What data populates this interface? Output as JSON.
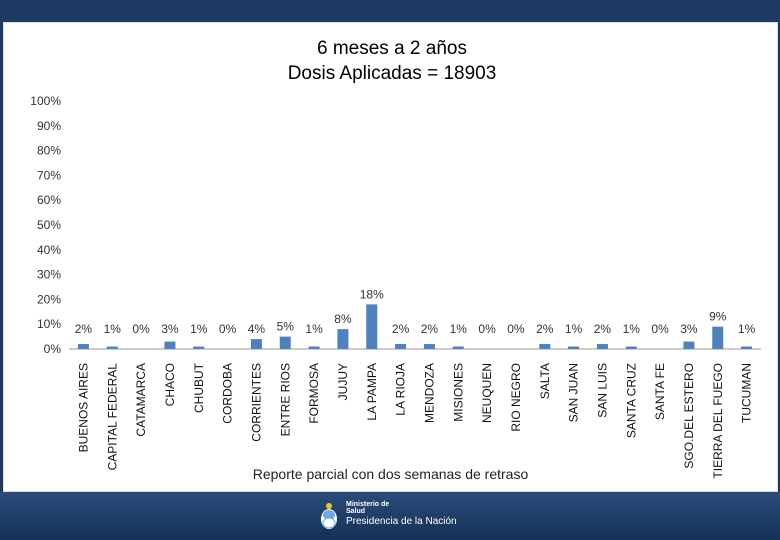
{
  "chart_data": {
    "type": "bar",
    "title": [
      "6 meses a 2 años",
      "Dosis Aplicadas = 18903"
    ],
    "categories": [
      "BUENOS AIRES",
      "CAPITAL FEDERAL",
      "CATAMARCA",
      "CHACO",
      "CHUBUT",
      "CORDOBA",
      "CORRIENTES",
      "ENTRE RIOS",
      "FORMOSA",
      "JUJUY",
      "LA PAMPA",
      "LA RIOJA",
      "MENDOZA",
      "MISIONES",
      "NEUQUEN",
      "RIO NEGRO",
      "SALTA",
      "SAN JUAN",
      "SAN LUIS",
      "SANTA CRUZ",
      "SANTA FE",
      "SGO.DEL ESTERO",
      "TIERRA DEL FUEGO",
      "TUCUMAN"
    ],
    "values": [
      2,
      1,
      0,
      3,
      1,
      0,
      4,
      5,
      1,
      8,
      18,
      2,
      2,
      1,
      0,
      0,
      2,
      1,
      2,
      1,
      0,
      3,
      9,
      1
    ],
    "value_labels": [
      "2%",
      "1%",
      "0%",
      "3%",
      "1%",
      "0%",
      "4%",
      "5%",
      "1%",
      "8%",
      "18%",
      "2%",
      "2%",
      "1%",
      "0%",
      "0%",
      "2%",
      "1%",
      "2%",
      "1%",
      "0%",
      "3%",
      "9%",
      "1%"
    ],
    "ylim": [
      0,
      100
    ],
    "yticks": [
      "0%",
      "10%",
      "20%",
      "30%",
      "40%",
      "50%",
      "60%",
      "70%",
      "80%",
      "90%",
      "100%"
    ],
    "xlabel": "",
    "ylabel": "",
    "bar_color": "#4f81bd",
    "grid": false,
    "legend": "none"
  },
  "footnote": "Reporte parcial con dos semanas de retraso",
  "footer": {
    "line1": "Ministerio de",
    "line2": "Salud",
    "line3": "Presidencia de la Nación"
  }
}
